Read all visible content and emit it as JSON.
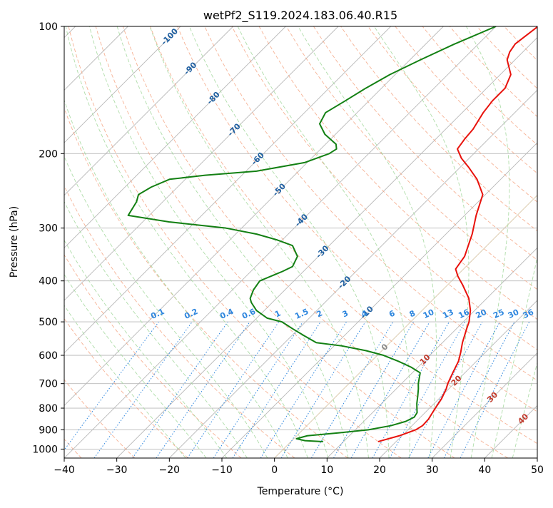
{
  "chart_data": {
    "type": "line",
    "title": "wetPf2_S119.2024.183.06.40.R15",
    "xlabel": "Temperature (°C)",
    "ylabel": "Pressure (hPa)",
    "xlim": [
      -40,
      50
    ],
    "ylim": [
      1050,
      100
    ],
    "y_scale": "log",
    "skew_degrees": 45,
    "grid": true,
    "x_ticks": [
      -40,
      -30,
      -20,
      -10,
      0,
      10,
      20,
      30,
      40,
      50
    ],
    "y_ticks": [
      100,
      200,
      300,
      400,
      500,
      600,
      700,
      800,
      900,
      1000
    ],
    "series": [
      {
        "color": "#e8120c",
        "points": [
          [
            960,
            16.6
          ],
          [
            930,
            19.5
          ],
          [
            900,
            21.5
          ],
          [
            880,
            22.0
          ],
          [
            850,
            21.9
          ],
          [
            800,
            21.1
          ],
          [
            760,
            20.5
          ],
          [
            720,
            19.5
          ],
          [
            700,
            18.8
          ],
          [
            660,
            17.7
          ],
          [
            620,
            16.6
          ],
          [
            590,
            15.3
          ],
          [
            560,
            13.8
          ],
          [
            520,
            12.0
          ],
          [
            500,
            11.1
          ],
          [
            470,
            9.2
          ],
          [
            440,
            6.6
          ],
          [
            410,
            3.0
          ],
          [
            390,
            0.3
          ],
          [
            375,
            -1.5
          ],
          [
            350,
            -2.2
          ],
          [
            310,
            -5.0
          ],
          [
            280,
            -7.8
          ],
          [
            250,
            -10.5
          ],
          [
            230,
            -14.5
          ],
          [
            215,
            -18.5
          ],
          [
            205,
            -21.5
          ],
          [
            195,
            -24.0
          ],
          [
            185,
            -24.5
          ],
          [
            175,
            -24.8
          ],
          [
            160,
            -26.0
          ],
          [
            150,
            -26.5
          ],
          [
            140,
            -26.5
          ],
          [
            130,
            -28.0
          ],
          [
            120,
            -31.5
          ],
          [
            115,
            -32.5
          ],
          [
            110,
            -33.0
          ],
          [
            100,
            -32.0
          ]
        ]
      },
      {
        "color": "#138013",
        "points": [
          [
            960,
            6.1
          ],
          [
            955,
            2.5
          ],
          [
            945,
            0.5
          ],
          [
            930,
            2.0
          ],
          [
            915,
            7.5
          ],
          [
            900,
            12.5
          ],
          [
            880,
            16.0
          ],
          [
            860,
            18.0
          ],
          [
            840,
            18.8
          ],
          [
            820,
            18.5
          ],
          [
            800,
            17.6
          ],
          [
            780,
            16.7
          ],
          [
            750,
            15.5
          ],
          [
            720,
            14.2
          ],
          [
            700,
            13.2
          ],
          [
            660,
            11.5
          ],
          [
            640,
            8.7
          ],
          [
            620,
            5.2
          ],
          [
            600,
            1.2
          ],
          [
            585,
            -3.0
          ],
          [
            570,
            -8.5
          ],
          [
            560,
            -14.0
          ],
          [
            540,
            -17.5
          ],
          [
            520,
            -21.0
          ],
          [
            500,
            -24.5
          ],
          [
            490,
            -28.0
          ],
          [
            470,
            -31.5
          ],
          [
            450,
            -34.0
          ],
          [
            440,
            -35.0
          ],
          [
            420,
            -36.0
          ],
          [
            400,
            -36.5
          ],
          [
            380,
            -34.0
          ],
          [
            370,
            -33.0
          ],
          [
            350,
            -34.0
          ],
          [
            330,
            -37.0
          ],
          [
            320,
            -41.0
          ],
          [
            310,
            -46.0
          ],
          [
            300,
            -53.0
          ],
          [
            290,
            -65.0
          ],
          [
            280,
            -74.0
          ],
          [
            260,
            -75.0
          ],
          [
            250,
            -76.0
          ],
          [
            240,
            -75.0
          ],
          [
            230,
            -73.0
          ],
          [
            225,
            -67.0
          ],
          [
            220,
            -58.0
          ],
          [
            210,
            -50.5
          ],
          [
            200,
            -47.5
          ],
          [
            195,
            -47.0
          ],
          [
            190,
            -48.0
          ],
          [
            180,
            -52.0
          ],
          [
            170,
            -55.0
          ],
          [
            160,
            -56.0
          ],
          [
            150,
            -54.5
          ],
          [
            140,
            -53.0
          ],
          [
            130,
            -51.0
          ],
          [
            120,
            -48.0
          ],
          [
            110,
            -44.5
          ],
          [
            100,
            -40.0
          ]
        ]
      }
    ],
    "dry_adiabat_labels": [
      "-100",
      "-90",
      "-80",
      "-70",
      "-60",
      "-50",
      "-40",
      "-30",
      "-20",
      "-10"
    ],
    "moist_adiabat_labels": [
      "0",
      "10",
      "20",
      "30",
      "40"
    ],
    "mixing_ratio_labels": [
      "0.1",
      "0.2",
      "0.4",
      "0.6",
      "1",
      "1.5",
      "2",
      "3",
      "4",
      "6",
      "8",
      "10",
      "13",
      "16",
      "20",
      "25",
      "30",
      "36"
    ],
    "colors": {
      "isotherm": "#b8b8b8",
      "isobar": "#b8b8b8",
      "dry_adiabat": "#f4a582",
      "moist_adiabat": "#a6d9a0",
      "mixing_ratio": "#2e86de",
      "dry_label": "#1f5fa0",
      "moist_label": "#c0392b",
      "mixing_label": "#2e86de",
      "zero_isotherm": "#d9c7a8"
    }
  }
}
